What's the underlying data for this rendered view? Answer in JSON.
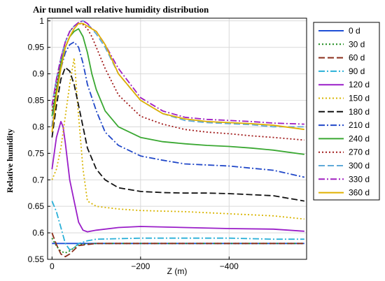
{
  "chart_data": {
    "type": "line",
    "title": "Air tunnel wall relative humidity distribution",
    "xlabel": "Z (m)",
    "ylabel": "Relative humidity",
    "xlim": [
      10,
      -575
    ],
    "ylim": [
      0.55,
      1.005
    ],
    "x_ticks": [
      0,
      -200,
      -400
    ],
    "x_tick_labels": [
      "0",
      "−200",
      "−400"
    ],
    "y_ticks": [
      0.55,
      0.6,
      0.65,
      0.7,
      0.75,
      0.8,
      0.85,
      0.9,
      0.95,
      1
    ],
    "y_tick_labels": [
      "0.55",
      "0.6",
      "0.65",
      "0.7",
      "0.75",
      "0.8",
      "0.85",
      "0.9",
      "0.95",
      "1"
    ],
    "grid": true,
    "legend_position": "right-outside",
    "series": [
      {
        "name": "0 d",
        "color": "#1f4fd6",
        "dash": "solid",
        "x": [
          0,
          -570
        ],
        "y": [
          0.58,
          0.58
        ]
      },
      {
        "name": "30 d",
        "color": "#1a8a1a",
        "dash": "dot",
        "x": [
          0,
          -10,
          -20,
          -30,
          -40,
          -60,
          -100,
          -200,
          -300,
          -400,
          -500,
          -570
        ],
        "y": [
          0.59,
          0.575,
          0.565,
          0.562,
          0.566,
          0.578,
          0.58,
          0.58,
          0.58,
          0.58,
          0.58,
          0.58
        ]
      },
      {
        "name": "60 d",
        "color": "#8b2e1a",
        "dash": "dash",
        "x": [
          0,
          -10,
          -20,
          -30,
          -40,
          -60,
          -100,
          -200,
          -300,
          -400,
          -500,
          -570
        ],
        "y": [
          0.6,
          0.578,
          0.56,
          0.555,
          0.56,
          0.576,
          0.58,
          0.58,
          0.58,
          0.58,
          0.58,
          0.58
        ]
      },
      {
        "name": "90 d",
        "color": "#2ab0d8",
        "dash": "dashdot",
        "x": [
          0,
          -10,
          -20,
          -30,
          -40,
          -50,
          -60,
          -80,
          -100,
          -200,
          -300,
          -400,
          -500,
          -570
        ],
        "y": [
          0.66,
          0.64,
          0.61,
          0.58,
          0.568,
          0.572,
          0.58,
          0.585,
          0.588,
          0.59,
          0.59,
          0.59,
          0.588,
          0.588
        ]
      },
      {
        "name": "120 d",
        "color": "#9a1ec8",
        "dash": "solid",
        "x": [
          0,
          -10,
          -20,
          -25,
          -30,
          -40,
          -50,
          -60,
          -70,
          -80,
          -100,
          -150,
          -200,
          -300,
          -400,
          -500,
          -570
        ],
        "y": [
          0.72,
          0.78,
          0.81,
          0.8,
          0.77,
          0.7,
          0.66,
          0.62,
          0.605,
          0.602,
          0.605,
          0.61,
          0.612,
          0.61,
          0.608,
          0.607,
          0.603
        ]
      },
      {
        "name": "150 d",
        "color": "#d8b400",
        "dash": "dot",
        "x": [
          0,
          -10,
          -20,
          -30,
          -40,
          -50,
          -60,
          -70,
          -80,
          -100,
          -150,
          -200,
          -300,
          -400,
          -500,
          -570
        ],
        "y": [
          0.7,
          0.72,
          0.76,
          0.82,
          0.88,
          0.93,
          0.82,
          0.72,
          0.66,
          0.65,
          0.645,
          0.642,
          0.64,
          0.636,
          0.632,
          0.626
        ]
      },
      {
        "name": "180 d",
        "color": "#111111",
        "dash": "dash",
        "x": [
          0,
          -10,
          -20,
          -30,
          -40,
          -50,
          -60,
          -80,
          -100,
          -120,
          -150,
          -200,
          -250,
          -300,
          -350,
          -400,
          -450,
          -500,
          -570
        ],
        "y": [
          0.78,
          0.84,
          0.89,
          0.912,
          0.905,
          0.88,
          0.84,
          0.76,
          0.72,
          0.7,
          0.685,
          0.678,
          0.676,
          0.675,
          0.675,
          0.674,
          0.672,
          0.67,
          0.66
        ]
      },
      {
        "name": "210 d",
        "color": "#2047c8",
        "dash": "dashdot",
        "x": [
          0,
          -10,
          -20,
          -30,
          -40,
          -50,
          -60,
          -70,
          -80,
          -100,
          -120,
          -150,
          -200,
          -250,
          -300,
          -350,
          -400,
          -450,
          -500,
          -570
        ],
        "y": [
          0.8,
          0.86,
          0.91,
          0.94,
          0.955,
          0.96,
          0.95,
          0.92,
          0.88,
          0.83,
          0.79,
          0.765,
          0.745,
          0.737,
          0.73,
          0.728,
          0.726,
          0.722,
          0.718,
          0.705
        ]
      },
      {
        "name": "240 d",
        "color": "#3aa832",
        "dash": "solid",
        "x": [
          0,
          -10,
          -20,
          -30,
          -40,
          -50,
          -60,
          -70,
          -80,
          -90,
          -100,
          -120,
          -150,
          -200,
          -250,
          -300,
          -350,
          -400,
          -450,
          -500,
          -570
        ],
        "y": [
          0.82,
          0.87,
          0.92,
          0.95,
          0.97,
          0.98,
          0.985,
          0.97,
          0.94,
          0.9,
          0.87,
          0.83,
          0.8,
          0.78,
          0.772,
          0.768,
          0.765,
          0.763,
          0.76,
          0.756,
          0.748
        ]
      },
      {
        "name": "270 d",
        "color": "#a01818",
        "dash": "dot",
        "x": [
          0,
          -10,
          -20,
          -30,
          -40,
          -50,
          -60,
          -70,
          -80,
          -90,
          -100,
          -120,
          -150,
          -200,
          -250,
          -300,
          -350,
          -400,
          -450,
          -500,
          -570
        ],
        "y": [
          0.83,
          0.88,
          0.93,
          0.96,
          0.98,
          0.99,
          0.995,
          0.993,
          0.985,
          0.97,
          0.95,
          0.91,
          0.86,
          0.82,
          0.805,
          0.795,
          0.79,
          0.787,
          0.783,
          0.78,
          0.775
        ]
      },
      {
        "name": "300 d",
        "color": "#5fa9d8",
        "dash": "dash",
        "x": [
          0,
          -10,
          -20,
          -30,
          -40,
          -50,
          -60,
          -70,
          -80,
          -90,
          -100,
          -120,
          -150,
          -200,
          -250,
          -300,
          -350,
          -400,
          -450,
          -500,
          -570
        ],
        "y": [
          0.84,
          0.89,
          0.93,
          0.96,
          0.98,
          0.99,
          0.997,
          1.0,
          0.995,
          0.985,
          0.975,
          0.95,
          0.9,
          0.85,
          0.825,
          0.812,
          0.808,
          0.806,
          0.804,
          0.8,
          0.8
        ]
      },
      {
        "name": "330 d",
        "color": "#a020c0",
        "dash": "dashdot",
        "x": [
          0,
          -10,
          -20,
          -30,
          -40,
          -50,
          -60,
          -70,
          -80,
          -90,
          -100,
          -120,
          -150,
          -200,
          -250,
          -300,
          -350,
          -400,
          -450,
          -500,
          -570
        ],
        "y": [
          0.84,
          0.89,
          0.93,
          0.96,
          0.98,
          0.99,
          0.997,
          1.0,
          0.995,
          0.985,
          0.98,
          0.955,
          0.91,
          0.855,
          0.83,
          0.818,
          0.814,
          0.812,
          0.81,
          0.807,
          0.805
        ]
      },
      {
        "name": "360 d",
        "color": "#e0b000",
        "dash": "solid",
        "x": [
          0,
          -10,
          -20,
          -30,
          -40,
          -50,
          -60,
          -70,
          -80,
          -90,
          -100,
          -120,
          -150,
          -200,
          -250,
          -300,
          -350,
          -400,
          -450,
          -500,
          -570
        ],
        "y": [
          0.79,
          0.86,
          0.91,
          0.95,
          0.97,
          0.985,
          0.995,
          0.995,
          0.99,
          0.985,
          0.98,
          0.955,
          0.9,
          0.85,
          0.825,
          0.815,
          0.81,
          0.808,
          0.806,
          0.803,
          0.795
        ]
      }
    ]
  }
}
